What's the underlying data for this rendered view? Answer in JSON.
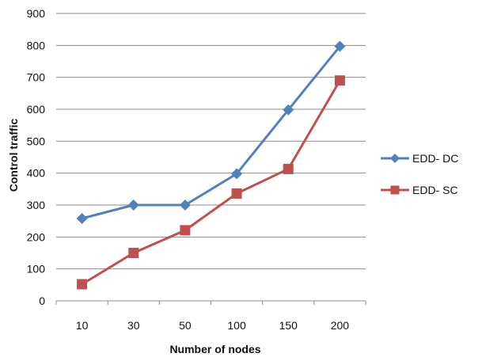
{
  "chart_data": {
    "type": "line",
    "title": "",
    "xlabel": "Number of nodes",
    "ylabel": "Control traffic",
    "categories": [
      "10",
      "30",
      "50",
      "100",
      "150",
      "200"
    ],
    "ylim": [
      0,
      900
    ],
    "yticks": [
      0,
      100,
      200,
      300,
      400,
      500,
      600,
      700,
      800,
      900
    ],
    "grid": true,
    "legend_position": "right",
    "series": [
      {
        "name": "EDD- DC",
        "values": [
          258,
          300,
          300,
          398,
          598,
          797
        ],
        "color": "#4F81BD",
        "marker": "diamond"
      },
      {
        "name": "EDD- SC",
        "values": [
          52,
          150,
          221,
          336,
          413,
          690
        ],
        "color": "#C0504D",
        "marker": "square"
      }
    ]
  }
}
